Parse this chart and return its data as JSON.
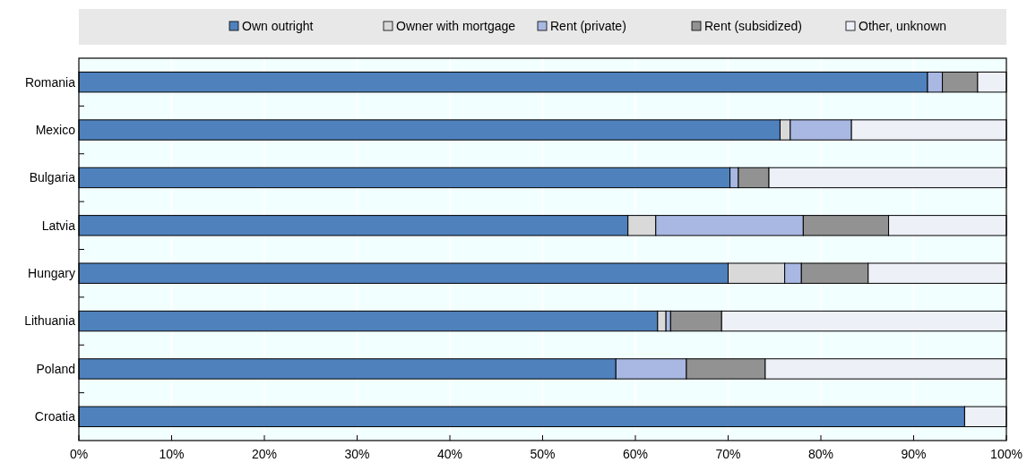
{
  "chart_data": {
    "type": "bar",
    "orientation": "horizontal",
    "stacked": true,
    "categories": [
      "Romania",
      "Mexico",
      "Bulgaria",
      "Latvia",
      "Hungary",
      "Lithuania",
      "Poland",
      "Croatia"
    ],
    "series": [
      {
        "name": "Own outright",
        "color": "#4f81bd",
        "values": [
          91.5,
          75.6,
          70.2,
          59.2,
          70.0,
          62.4,
          57.9,
          95.5
        ]
      },
      {
        "name": "Owner with mortgage",
        "color": "#d9d9d9",
        "values": [
          0,
          1.1,
          0,
          3.0,
          6.1,
          0.9,
          0,
          0
        ]
      },
      {
        "name": "Rent (private)",
        "color": "#a9b8e3",
        "values": [
          1.6,
          6.6,
          0.9,
          15.9,
          1.8,
          0.5,
          7.6,
          0
        ]
      },
      {
        "name": "Rent (subsidized)",
        "color": "#929292",
        "values": [
          3.8,
          0,
          3.3,
          9.2,
          7.2,
          5.5,
          8.5,
          0
        ]
      },
      {
        "name": "Other, unknown",
        "color": "#eef0f8",
        "values": [
          3.1,
          16.7,
          25.6,
          12.7,
          14.9,
          30.7,
          26.0,
          4.5
        ]
      }
    ],
    "xlim": [
      0,
      100
    ],
    "xticks": [
      {
        "value": 0,
        "label": "0%"
      },
      {
        "value": 10,
        "label": "10%"
      },
      {
        "value": 20,
        "label": "20%"
      },
      {
        "value": 30,
        "label": "30%"
      },
      {
        "value": 40,
        "label": "40%"
      },
      {
        "value": 50,
        "label": "50%"
      },
      {
        "value": 60,
        "label": "60%"
      },
      {
        "value": 70,
        "label": "70%"
      },
      {
        "value": 80,
        "label": "80%"
      },
      {
        "value": 90,
        "label": "90%"
      },
      {
        "value": 100,
        "label": "100%"
      }
    ],
    "grid": "x",
    "legend": "top"
  }
}
